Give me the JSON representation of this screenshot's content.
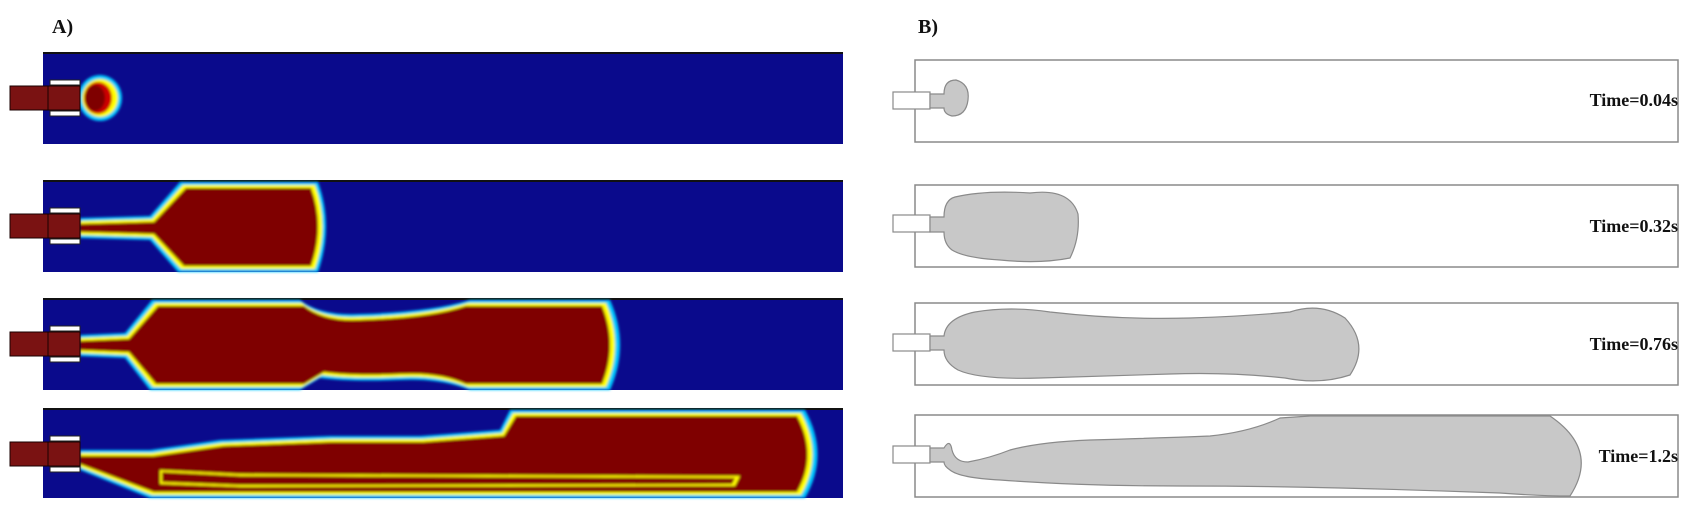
{
  "panels": {
    "a": {
      "label": "A)"
    },
    "b": {
      "label": "B)"
    }
  },
  "frames": [
    {
      "time": "Time=0.04s"
    },
    {
      "time": "Time=0.32s"
    },
    {
      "time": "Time=0.76s"
    },
    {
      "time": "Time=1.2s"
    }
  ],
  "colors": {
    "background_phase": "#0a0a8c",
    "droplet_phase": "#7f0000",
    "interface_inner": "#ffff00",
    "interface_outer": "#00c8ff",
    "nozzle": "#7a1212",
    "gray_droplet": "#c8c8c8",
    "gray_outline": "#8a8a8a"
  }
}
